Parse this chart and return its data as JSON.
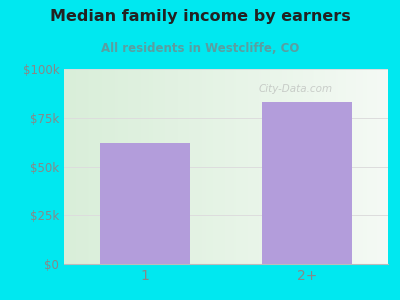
{
  "categories": [
    "1",
    "2+"
  ],
  "values": [
    62000,
    83000
  ],
  "bar_color": "#b39ddb",
  "title": "Median family income by earners",
  "subtitle": "All residents in Westcliffe, CO",
  "title_color": "#222222",
  "subtitle_color": "#5a9ea0",
  "outer_bg_color": "#00e8f0",
  "plot_bg_left": "#d4ecd4",
  "plot_bg_right": "#f5faf5",
  "yticks": [
    0,
    25000,
    50000,
    75000,
    100000
  ],
  "ytick_labels": [
    "$0",
    "$25k",
    "$50k",
    "$75k",
    "$100k"
  ],
  "ylim": [
    0,
    100000
  ],
  "tick_color": "#888888",
  "grid_color": "#dddddd",
  "watermark": "City-Data.com"
}
